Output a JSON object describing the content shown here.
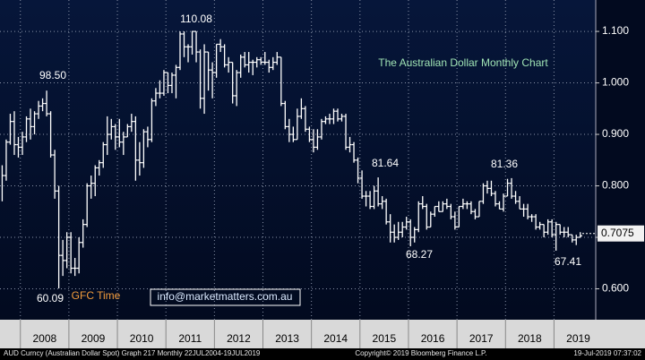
{
  "chart_data": {
    "type": "hlc",
    "title": "The Australian Dollar Monthly Chart",
    "email": "info@marketmatters.com.au",
    "footer": {
      "left": "AUD Curncy (Australian Dollar Spot) Graph 217  Monthly 22JUL2004-19JUL2019",
      "center": "Copyright© 2019 Bloomberg Finance L.P.",
      "right": "19-Jul-2019 07:37:02"
    },
    "annotations": [
      {
        "text": "98.50"
      },
      {
        "text": "110.08"
      },
      {
        "text": "81.64"
      },
      {
        "text": "81.36"
      },
      {
        "text": "68.27"
      },
      {
        "text": "67.41"
      },
      {
        "text": "60.09"
      },
      {
        "text": "GFC Time"
      }
    ],
    "last_price": 0.7075,
    "color": "#ffffff",
    "grid": true,
    "xlim": [
      2007.58,
      2019.86
    ],
    "xticks": [
      {
        "value": 2008.5,
        "label": "2008"
      },
      {
        "value": 2009.5,
        "label": "2009"
      },
      {
        "value": 2010.5,
        "label": "2010"
      },
      {
        "value": 2011.5,
        "label": "2011"
      },
      {
        "value": 2012.5,
        "label": "2012"
      },
      {
        "value": 2013.5,
        "label": "2013"
      },
      {
        "value": 2014.5,
        "label": "2014"
      },
      {
        "value": 2015.5,
        "label": "2015"
      },
      {
        "value": 2016.5,
        "label": "2016"
      },
      {
        "value": 2017.5,
        "label": "2017"
      },
      {
        "value": 2018.5,
        "label": "2018"
      },
      {
        "value": 2019.5,
        "label": "2019"
      }
    ],
    "ylim": [
      0.54,
      1.161
    ],
    "yticks": [
      {
        "value": 0.6,
        "label": "0.600"
      },
      {
        "value": 0.7,
        "label": "0.700"
      },
      {
        "value": 0.8,
        "label": "0.800"
      },
      {
        "value": 0.9,
        "label": "0.900"
      },
      {
        "value": 1.0,
        "label": "1.000"
      },
      {
        "value": 1.1,
        "label": "1.100"
      }
    ],
    "high": [
      0.84,
      0.89,
      0.94,
      0.945,
      0.895,
      0.905,
      0.935,
      0.95,
      0.945,
      0.965,
      0.97,
      0.985,
      0.945,
      0.87,
      0.8,
      0.695,
      0.71,
      0.71,
      0.66,
      0.7,
      0.735,
      0.805,
      0.82,
      0.84,
      0.85,
      0.885,
      0.935,
      0.93,
      0.92,
      0.93,
      0.905,
      0.92,
      0.94,
      0.935,
      0.885,
      0.91,
      0.915,
      0.97,
      0.99,
      1.005,
      1.025,
      1.02,
      1.02,
      1.035,
      1.1,
      1.1,
      1.075,
      1.1008,
      1.1,
      1.065,
      1.075,
      1.06,
      1.04,
      1.075,
      1.085,
      1.075,
      1.05,
      1.04,
      1.025,
      1.055,
      1.06,
      1.06,
      1.045,
      1.05,
      1.05,
      1.06,
      1.045,
      1.05,
      1.06,
      1.05,
      0.965,
      0.93,
      0.915,
      0.95,
      0.97,
      0.955,
      0.915,
      0.91,
      0.91,
      0.93,
      0.935,
      0.94,
      0.95,
      0.95,
      0.94,
      0.94,
      0.895,
      0.885,
      0.855,
      0.83,
      0.79,
      0.79,
      0.8,
      0.8164,
      0.78,
      0.775,
      0.745,
      0.725,
      0.73,
      0.73,
      0.74,
      0.735,
      0.72,
      0.77,
      0.78,
      0.765,
      0.75,
      0.76,
      0.77,
      0.77,
      0.775,
      0.765,
      0.75,
      0.76,
      0.775,
      0.77,
      0.77,
      0.755,
      0.77,
      0.805,
      0.81,
      0.81,
      0.79,
      0.77,
      0.785,
      0.8136,
      0.815,
      0.79,
      0.78,
      0.765,
      0.765,
      0.745,
      0.745,
      0.73,
      0.725,
      0.735,
      0.735,
      0.73,
      0.725,
      0.72,
      0.72,
      0.705,
      0.705,
      0.71
    ],
    "low": [
      0.77,
      0.81,
      0.88,
      0.86,
      0.855,
      0.86,
      0.885,
      0.89,
      0.9,
      0.93,
      0.945,
      0.935,
      0.855,
      0.775,
      0.6009,
      0.625,
      0.64,
      0.63,
      0.625,
      0.63,
      0.68,
      0.72,
      0.775,
      0.78,
      0.82,
      0.835,
      0.86,
      0.89,
      0.87,
      0.875,
      0.86,
      0.895,
      0.905,
      0.81,
      0.82,
      0.835,
      0.875,
      0.885,
      0.955,
      0.97,
      0.975,
      0.98,
      0.98,
      0.97,
      1.025,
      1.05,
      1.04,
      1.055,
      1.04,
      0.95,
      0.94,
      0.985,
      0.97,
      1.01,
      1.06,
      1.03,
      1.02,
      0.96,
      0.955,
      1.01,
      1.03,
      1.02,
      1.015,
      1.03,
      1.035,
      1.035,
      1.02,
      1.025,
      1.035,
      0.955,
      0.91,
      0.885,
      0.885,
      0.89,
      0.93,
      0.905,
      0.885,
      0.865,
      0.87,
      0.89,
      0.92,
      0.92,
      0.92,
      0.925,
      0.925,
      0.87,
      0.865,
      0.845,
      0.805,
      0.775,
      0.76,
      0.755,
      0.755,
      0.76,
      0.755,
      0.725,
      0.69,
      0.69,
      0.695,
      0.7,
      0.715,
      0.6827,
      0.69,
      0.71,
      0.755,
      0.715,
      0.72,
      0.74,
      0.75,
      0.75,
      0.755,
      0.735,
      0.715,
      0.72,
      0.755,
      0.755,
      0.745,
      0.735,
      0.74,
      0.765,
      0.785,
      0.78,
      0.76,
      0.755,
      0.75,
      0.78,
      0.775,
      0.765,
      0.755,
      0.74,
      0.735,
      0.73,
      0.715,
      0.715,
      0.7,
      0.705,
      0.7,
      0.6741,
      0.705,
      0.7,
      0.7,
      0.69,
      0.685,
      0.7
    ],
    "close": [
      0.82,
      0.885,
      0.925,
      0.88,
      0.875,
      0.895,
      0.93,
      0.915,
      0.94,
      0.955,
      0.96,
      0.94,
      0.86,
      0.79,
      0.665,
      0.655,
      0.7,
      0.64,
      0.64,
      0.69,
      0.725,
      0.8,
      0.805,
      0.835,
      0.845,
      0.88,
      0.9,
      0.915,
      0.895,
      0.885,
      0.895,
      0.915,
      0.925,
      0.85,
      0.845,
      0.905,
      0.89,
      0.965,
      0.98,
      0.98,
      1.02,
      0.995,
      1.015,
      1.03,
      1.095,
      1.07,
      1.07,
      1.1,
      1.06,
      0.97,
      1.06,
      1.025,
      1.02,
      1.075,
      1.07,
      1.035,
      1.04,
      0.975,
      1.02,
      1.05,
      1.035,
      1.04,
      1.04,
      1.045,
      1.04,
      1.04,
      1.03,
      1.04,
      1.05,
      0.96,
      0.915,
      0.9,
      0.89,
      0.935,
      0.95,
      0.91,
      0.89,
      0.875,
      0.895,
      0.925,
      0.93,
      0.93,
      0.945,
      0.93,
      0.935,
      0.875,
      0.88,
      0.85,
      0.815,
      0.78,
      0.78,
      0.76,
      0.79,
      0.765,
      0.77,
      0.73,
      0.71,
      0.7,
      0.71,
      0.72,
      0.73,
      0.7,
      0.715,
      0.765,
      0.76,
      0.72,
      0.745,
      0.76,
      0.75,
      0.765,
      0.76,
      0.74,
      0.72,
      0.76,
      0.765,
      0.765,
      0.75,
      0.74,
      0.77,
      0.8,
      0.795,
      0.785,
      0.765,
      0.755,
      0.78,
      0.805,
      0.78,
      0.77,
      0.755,
      0.755,
      0.74,
      0.74,
      0.72,
      0.725,
      0.71,
      0.73,
      0.705,
      0.725,
      0.71,
      0.71,
      0.705,
      0.695,
      0.7,
      0.703
    ]
  }
}
